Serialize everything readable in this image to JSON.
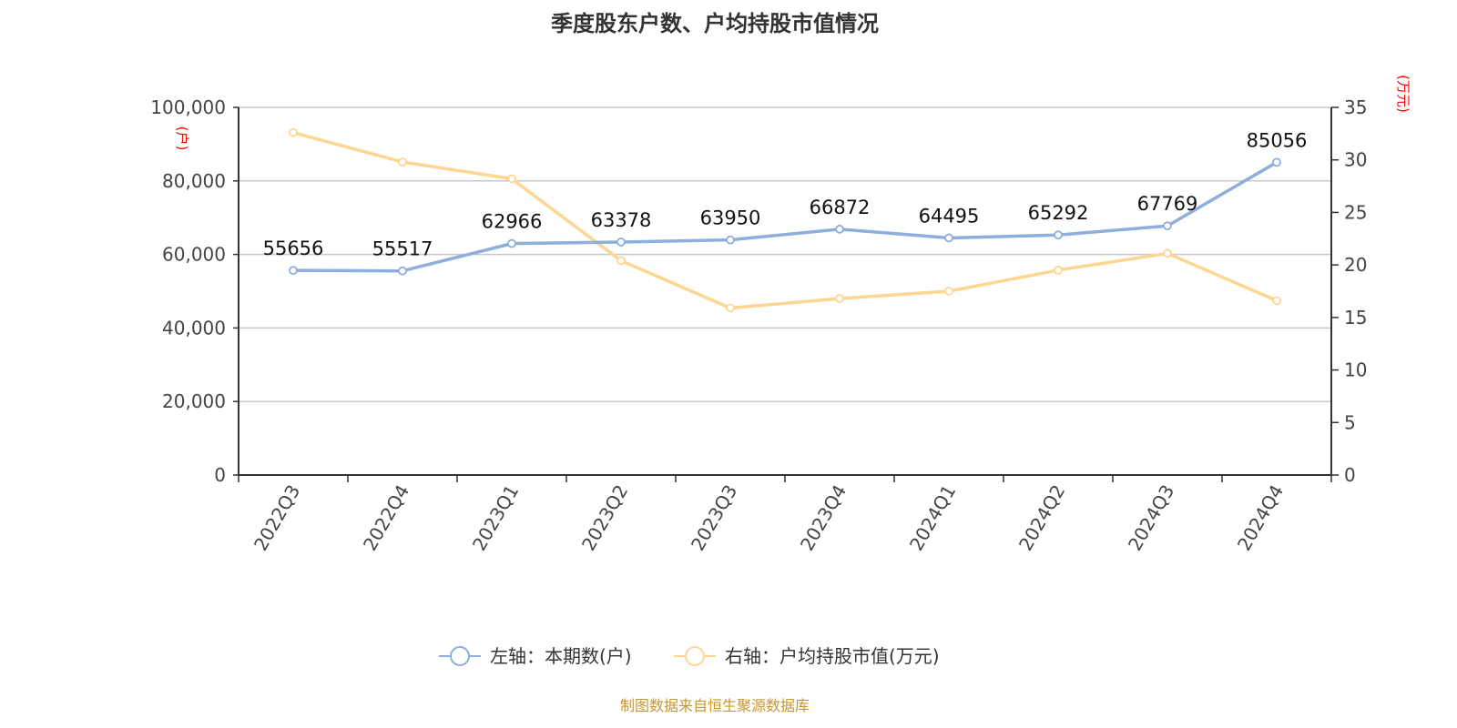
{
  "chart_data": {
    "type": "line",
    "title": "季度股东户数、户均持股市值情况",
    "categories": [
      "2022Q3",
      "2022Q4",
      "2023Q1",
      "2023Q2",
      "2023Q3",
      "2023Q4",
      "2024Q1",
      "2024Q2",
      "2024Q3",
      "2024Q4"
    ],
    "left_axis": {
      "unit": "(户)",
      "range": [
        0,
        100000
      ],
      "ticks": [
        "0",
        "20,000",
        "40,000",
        "60,000",
        "80,000",
        "100,000"
      ],
      "tick_values": [
        0,
        20000,
        40000,
        60000,
        80000,
        100000
      ]
    },
    "right_axis": {
      "unit": "(万元)",
      "range": [
        0,
        35
      ],
      "ticks": [
        "0",
        "5",
        "10",
        "15",
        "20",
        "25",
        "30",
        "35"
      ],
      "tick_values": [
        0,
        5,
        10,
        15,
        20,
        25,
        30,
        35
      ]
    },
    "grid": true,
    "legend_position": "bottom",
    "series": [
      {
        "name": "左轴：本期数(户)",
        "axis": "left",
        "color": "#8eaedb",
        "labels": true,
        "values": [
          55656,
          55517,
          62966,
          63378,
          63950,
          66872,
          64495,
          65292,
          67769,
          85056
        ]
      },
      {
        "name": "右轴：户均持股市值(万元)",
        "axis": "right",
        "color": "#fdd692",
        "labels": false,
        "values": [
          32.6,
          29.8,
          28.2,
          20.4,
          15.9,
          16.8,
          17.5,
          19.5,
          21.1,
          16.6
        ]
      }
    ],
    "source": "制图数据来自恒生聚源数据库"
  }
}
